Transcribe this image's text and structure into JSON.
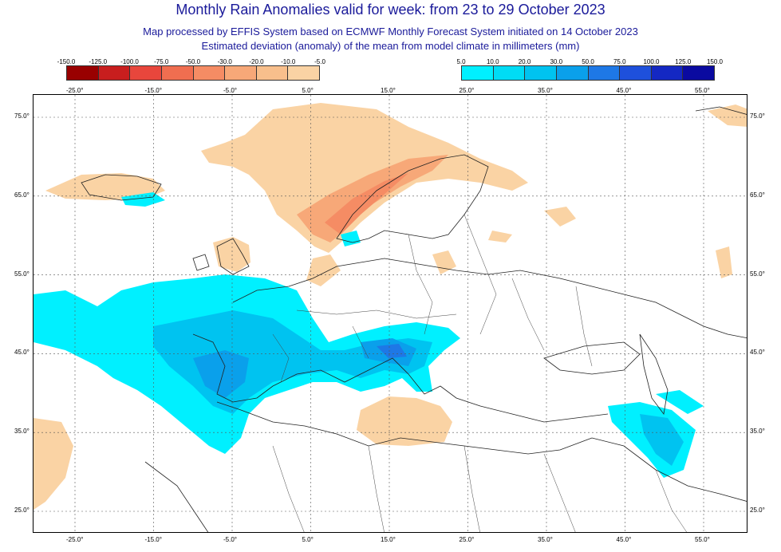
{
  "header": {
    "title": "Monthly Rain Anomalies valid for week: from 23 to 29 October 2023",
    "subtitle1": "Map processed by EFFIS System based on ECMWF Monthly Forecast System initiated on 14 October 2023",
    "subtitle2": "Estimated deviation (anomaly) of the mean from model climate in millimeters (mm)"
  },
  "legend": {
    "negative": {
      "labels": [
        "-150.0",
        "-125.0",
        "-100.0",
        "-75.0",
        "-50.0",
        "-30.0",
        "-20.0",
        "-10.0",
        "-5.0"
      ],
      "colors": [
        "#990000",
        "#c81e1e",
        "#e8463c",
        "#f06e50",
        "#f58c64",
        "#f7a878",
        "#f8bf8c",
        "#fad3a4"
      ]
    },
    "positive": {
      "labels": [
        "5.0",
        "10.0",
        "20.0",
        "30.0",
        "50.0",
        "75.0",
        "100.0",
        "125.0",
        "150.0"
      ],
      "colors": [
        "#00f0ff",
        "#00dcf5",
        "#00c3f0",
        "#0aa0eb",
        "#1e78e6",
        "#1e50dc",
        "#1428c3",
        "#0a0aa0"
      ]
    }
  },
  "map": {
    "lon_ticks": [
      "-25.0°",
      "-15.0°",
      "-5.0°",
      "5.0°",
      "15.0°",
      "25.0°",
      "35.0°",
      "45.0°",
      "55.0°"
    ],
    "lat_ticks": [
      "75.0°",
      "65.0°",
      "55.0°",
      "45.0°",
      "35.0°",
      "25.0°"
    ],
    "colors": {
      "ocean_line": "#222222",
      "grid": "#555555"
    }
  }
}
